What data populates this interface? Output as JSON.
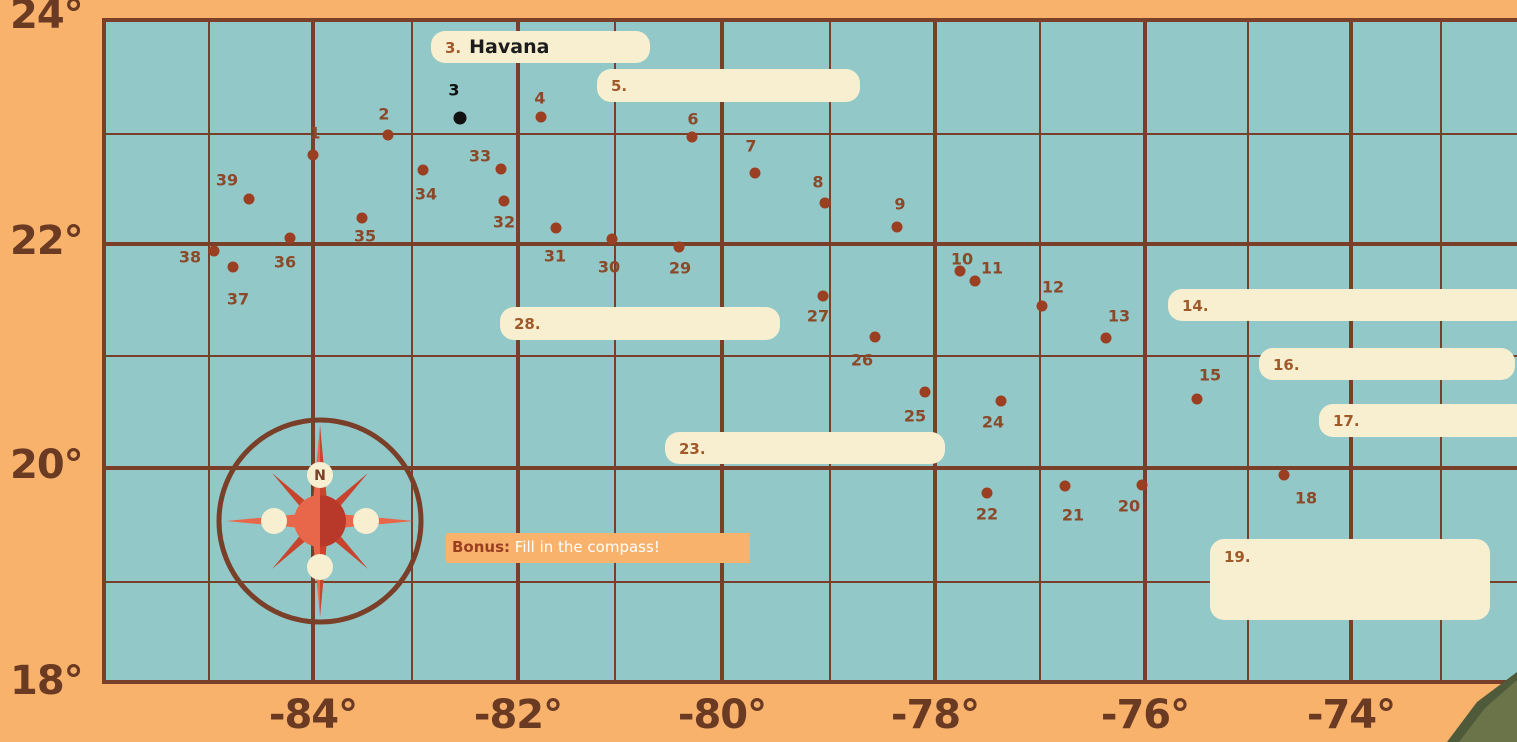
{
  "latitude_labels": [
    {
      "text": "24°",
      "key": "24"
    },
    {
      "text": "22°",
      "key": "22"
    },
    {
      "text": "20°",
      "key": "20"
    },
    {
      "text": "18°",
      "key": "18"
    }
  ],
  "longitude_labels": [
    {
      "text": "-84°",
      "key": "-84"
    },
    {
      "text": "-82°",
      "key": "-82"
    },
    {
      "text": "-80°",
      "key": "-80"
    },
    {
      "text": "-78°",
      "key": "-78"
    },
    {
      "text": "-76°",
      "key": "-76"
    },
    {
      "text": "-74°",
      "key": "-74"
    }
  ],
  "answer_boxes": [
    {
      "num": "3.",
      "answer": "Havana"
    },
    {
      "num": "5.",
      "answer": ""
    },
    {
      "num": "14.",
      "answer": ""
    },
    {
      "num": "16.",
      "answer": ""
    },
    {
      "num": "17.",
      "answer": ""
    },
    {
      "num": "19.",
      "answer": ""
    },
    {
      "num": "23.",
      "answer": ""
    },
    {
      "num": "28.",
      "answer": ""
    }
  ],
  "locations": [
    "1",
    "2",
    "3",
    "4",
    "6",
    "7",
    "8",
    "9",
    "10",
    "11",
    "12",
    "13",
    "15",
    "18",
    "20",
    "21",
    "22",
    "24",
    "25",
    "26",
    "27",
    "29",
    "30",
    "31",
    "32",
    "33",
    "34",
    "35",
    "36",
    "37",
    "38",
    "39"
  ],
  "selected_marker": {
    "label": "3"
  },
  "compass": {
    "north_label": "N"
  },
  "bonus": {
    "bold": "Bonus:",
    "text": " Fill in the compass!"
  },
  "colors": {
    "background": "#f8b26c",
    "sea": "#93c8c8",
    "grid": "#7a3f28",
    "dot": "#9b3f22",
    "answer_box": "#f7efcf",
    "compass_ring": "#7a3f28",
    "compass_points": "#e8674a"
  }
}
